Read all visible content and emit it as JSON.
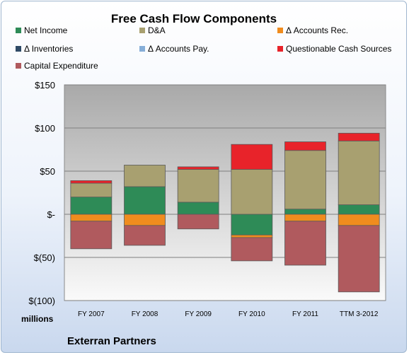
{
  "chart_data": {
    "type": "bar",
    "stacked": true,
    "title": "Free Cash Flow Components",
    "units_label": "millions",
    "footer": "Exterran Partners",
    "categories": [
      "FY 2007",
      "FY 2008",
      "FY 2009",
      "FY 2010",
      "FY 2011",
      "TTM 3-2012"
    ],
    "ylim": [
      -100,
      150
    ],
    "yticks": [
      150,
      100,
      50,
      0,
      -50,
      -100
    ],
    "ytick_labels": [
      "$150",
      "$100",
      "$50",
      "$-",
      "$(50)",
      "$(100)"
    ],
    "grid": true,
    "legend_position": "top",
    "series": [
      {
        "name": "Net Income",
        "color": "#2e8b57",
        "values": [
          20,
          32,
          14,
          -24,
          6,
          11
        ]
      },
      {
        "name": "D&A",
        "color": "#a8a070",
        "values": [
          16,
          25,
          38,
          52,
          68,
          74
        ]
      },
      {
        "name": "Δ Accounts Rec.",
        "color": "#f08c1e",
        "values": [
          -8,
          -13,
          0,
          -3,
          -8,
          -13
        ]
      },
      {
        "name": "Δ Inventories",
        "color": "#2f4a66",
        "values": [
          0,
          0,
          0,
          0,
          0,
          0
        ]
      },
      {
        "name": "Δ Accounts Pay.",
        "color": "#86aed8",
        "values": [
          0,
          0,
          0,
          0,
          0,
          0
        ]
      },
      {
        "name": "Questionable Cash Sources",
        "color": "#e8232a",
        "values": [
          3,
          0,
          3,
          29,
          10,
          9
        ]
      },
      {
        "name": "Capital Expenditure",
        "color": "#b05a5e",
        "values": [
          -32,
          -23,
          -17,
          -27,
          -51,
          -77
        ]
      }
    ]
  }
}
